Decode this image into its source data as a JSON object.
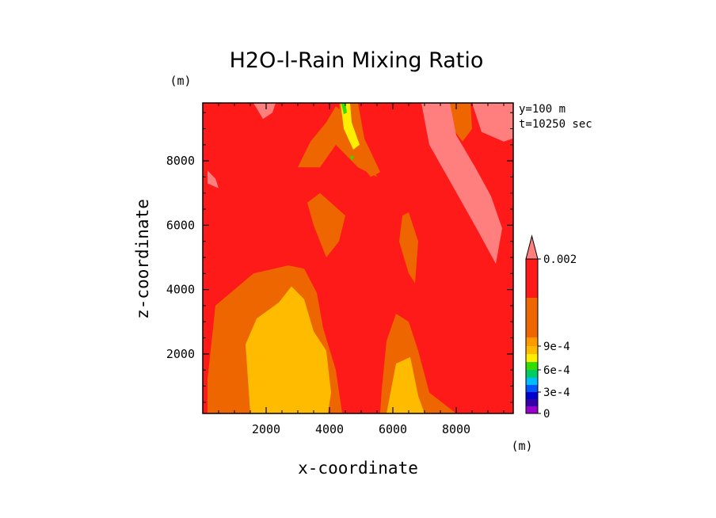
{
  "chart_data": {
    "type": "heatmap",
    "title": "H2O-l-Rain Mixing Ratio",
    "xlabel": "x-coordinate",
    "ylabel": "z-coordinate",
    "x_unit": "(m)",
    "y_unit": "(m)",
    "info_lines": [
      "y=100 m",
      "t=10250 sec"
    ],
    "xlim": [
      0,
      9800
    ],
    "ylim": [
      150,
      9800
    ],
    "x_ticks": [
      2000,
      4000,
      6000,
      8000
    ],
    "y_ticks": [
      2000,
      4000,
      6000,
      8000
    ],
    "colorbar": {
      "levels": [
        0,
        0.0001,
        0.0002,
        0.0003,
        0.0004,
        0.0005,
        0.0006,
        0.0007,
        0.0008,
        0.0009,
        0.001,
        0.002
      ],
      "tick_labels": [
        "0",
        "3e-4",
        "6e-4",
        "9e-4",
        "0.002"
      ],
      "tick_values": [
        0,
        0.0003,
        0.0006,
        0.0009,
        0.002
      ],
      "colors": [
        "#9900cc",
        "#3300aa",
        "#0000cc",
        "#0055ff",
        "#00bbff",
        "#00cc66",
        "#33dd00",
        "#ffee00",
        "#ffbb00",
        "#ff9900",
        "#ee6600",
        "#ff1a1a",
        "#ff7f7f"
      ],
      "extend_max": true
    },
    "background_color": "#ff1a1a",
    "regions": [
      {
        "level_color": "#ee6600",
        "points": [
          [
            150,
            1200
          ],
          [
            400,
            3500
          ],
          [
            1600,
            4500
          ],
          [
            2700,
            4750
          ],
          [
            3200,
            4650
          ],
          [
            3600,
            3900
          ],
          [
            3800,
            2800
          ],
          [
            4200,
            1500
          ],
          [
            4400,
            150
          ],
          [
            150,
            150
          ]
        ]
      },
      {
        "level_color": "#ffbb00",
        "points": [
          [
            1500,
            150
          ],
          [
            1350,
            2300
          ],
          [
            1700,
            3100
          ],
          [
            2400,
            3600
          ],
          [
            2800,
            4100
          ],
          [
            3200,
            3700
          ],
          [
            3500,
            2700
          ],
          [
            3900,
            2100
          ],
          [
            4050,
            800
          ],
          [
            3950,
            150
          ]
        ]
      },
      {
        "level_color": "#ee6600",
        "points": [
          [
            5600,
            150
          ],
          [
            5650,
            900
          ],
          [
            5800,
            2400
          ],
          [
            6100,
            3250
          ],
          [
            6500,
            3000
          ],
          [
            6800,
            2100
          ],
          [
            7150,
            800
          ],
          [
            8000,
            150
          ]
        ]
      },
      {
        "level_color": "#ffbb00",
        "points": [
          [
            5800,
            150
          ],
          [
            6100,
            1700
          ],
          [
            6550,
            1900
          ],
          [
            6800,
            700
          ],
          [
            7000,
            150
          ]
        ]
      },
      {
        "level_color": "#ee6600",
        "points": [
          [
            3000,
            7800
          ],
          [
            3400,
            8600
          ],
          [
            3900,
            9200
          ],
          [
            4200,
            9700
          ],
          [
            4700,
            9300
          ],
          [
            5200,
            8300
          ],
          [
            5500,
            7500
          ],
          [
            4900,
            7800
          ],
          [
            4200,
            8500
          ],
          [
            3700,
            7800
          ]
        ]
      },
      {
        "level_color": "#ee6600",
        "points": [
          [
            4300,
            9800
          ],
          [
            4400,
            8900
          ],
          [
            4900,
            8000
          ],
          [
            5300,
            7500
          ],
          [
            5600,
            7650
          ],
          [
            5100,
            8700
          ],
          [
            4900,
            9800
          ]
        ]
      },
      {
        "level_color": "#ffee00",
        "points": [
          [
            4350,
            9800
          ],
          [
            4450,
            9000
          ],
          [
            4750,
            8350
          ],
          [
            4950,
            8500
          ],
          [
            4700,
            9200
          ],
          [
            4650,
            9800
          ]
        ]
      },
      {
        "level_color": "#ffee00",
        "points": [
          [
            7900,
            9800
          ],
          [
            8050,
            9300
          ],
          [
            8300,
            8900
          ],
          [
            8400,
            9500
          ],
          [
            8300,
            9800
          ]
        ]
      },
      {
        "level_color": "#ee6600",
        "points": [
          [
            7800,
            9800
          ],
          [
            7900,
            9000
          ],
          [
            8200,
            8600
          ],
          [
            8500,
            9000
          ],
          [
            8450,
            9800
          ]
        ]
      },
      {
        "level_color": "#ff7f7f",
        "points": [
          [
            6900,
            9800
          ],
          [
            7150,
            8500
          ],
          [
            7900,
            7200
          ],
          [
            8700,
            5800
          ],
          [
            9250,
            4800
          ],
          [
            9450,
            5900
          ],
          [
            9100,
            6900
          ],
          [
            8600,
            7800
          ],
          [
            8000,
            8800
          ],
          [
            7800,
            9800
          ]
        ]
      },
      {
        "level_color": "#ff7f7f",
        "points": [
          [
            8500,
            9800
          ],
          [
            8800,
            8900
          ],
          [
            9500,
            8600
          ],
          [
            9800,
            8700
          ],
          [
            9800,
            9800
          ]
        ]
      },
      {
        "level_color": "#ff7f7f",
        "points": [
          [
            1600,
            9800
          ],
          [
            1900,
            9300
          ],
          [
            2200,
            9500
          ],
          [
            2300,
            9800
          ]
        ]
      },
      {
        "level_color": "#ff7f7f",
        "points": [
          [
            150,
            7700
          ],
          [
            400,
            7450
          ],
          [
            500,
            7150
          ],
          [
            150,
            7300
          ]
        ]
      },
      {
        "level_color": "#ee6600",
        "points": [
          [
            3500,
            6000
          ],
          [
            3300,
            6700
          ],
          [
            3700,
            7000
          ],
          [
            4500,
            6300
          ],
          [
            4300,
            5500
          ],
          [
            3900,
            5000
          ]
        ]
      },
      {
        "level_color": "#ee6600",
        "points": [
          [
            6300,
            6300
          ],
          [
            6200,
            5500
          ],
          [
            6500,
            4500
          ],
          [
            6700,
            4200
          ],
          [
            6800,
            5500
          ],
          [
            6500,
            6400
          ]
        ]
      }
    ],
    "greens": [
      {
        "level_color": "#33dd00",
        "points": [
          [
            4370,
            9800
          ],
          [
            4450,
            9450
          ],
          [
            4550,
            9500
          ],
          [
            4500,
            9800
          ]
        ]
      },
      {
        "level_color": "#33dd00",
        "points": [
          [
            4650,
            8150
          ],
          [
            4700,
            8000
          ],
          [
            4780,
            8150
          ]
        ]
      }
    ]
  }
}
